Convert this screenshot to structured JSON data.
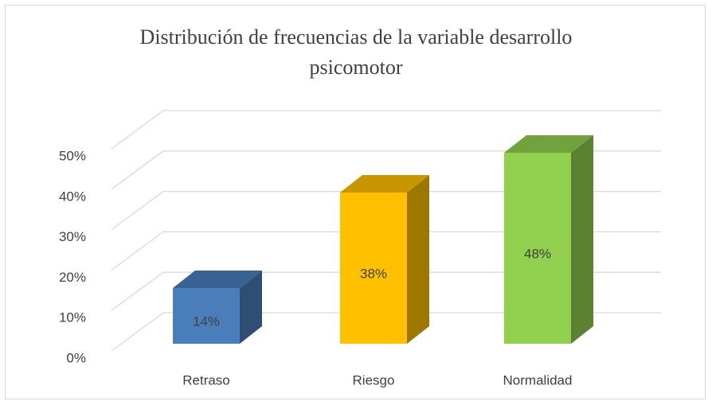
{
  "chart_data": {
    "type": "bar3d",
    "title": "Distribución de frecuencias de la variable desarrollo psicomotor",
    "categories": [
      "Retraso",
      "Riesgo",
      "Normalidad"
    ],
    "values": [
      14,
      38,
      48
    ],
    "value_labels": [
      "14%",
      "38%",
      "48%"
    ],
    "colors": [
      "#4a7ebb",
      "#ffc000",
      "#92d050"
    ],
    "ylim": [
      0,
      50
    ],
    "yticks": [
      {
        "value": 0,
        "label": "0%"
      },
      {
        "value": 10,
        "label": "10%"
      },
      {
        "value": 20,
        "label": "20%"
      },
      {
        "value": 30,
        "label": "30%"
      },
      {
        "value": 40,
        "label": "40%"
      },
      {
        "value": 50,
        "label": "50%"
      }
    ],
    "grid": true
  }
}
